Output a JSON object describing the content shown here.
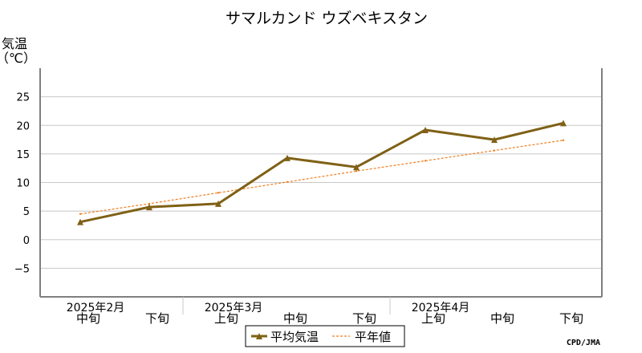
{
  "chart_data": {
    "type": "line",
    "title": "サマルカンド ウズベキスタン",
    "ylabel_line1": "気温",
    "ylabel_line2": "（℃）",
    "ylim": [
      -10,
      30
    ],
    "yticks": [
      "25",
      "20",
      "15",
      "10",
      "5",
      "0",
      "−5"
    ],
    "ytick_values": [
      25,
      20,
      15,
      10,
      5,
      0,
      -5
    ],
    "categories": [
      "中旬",
      "下旬",
      "上旬",
      "中旬",
      "下旬",
      "上旬",
      "中旬",
      "下旬"
    ],
    "months": [
      {
        "label": "2025年2月",
        "start_index": 0
      },
      {
        "label": "2025年3月",
        "start_index": 2
      },
      {
        "label": "2025年4月",
        "start_index": 5
      }
    ],
    "series": [
      {
        "name": "平均気温",
        "values": [
          3.1,
          5.7,
          6.3,
          14.3,
          12.7,
          19.2,
          17.5,
          20.4
        ],
        "color": "#7f6116",
        "marker": "triangle"
      },
      {
        "name": "平年値",
        "values": [
          4.5,
          6.3,
          8.2,
          10.1,
          12.0,
          13.8,
          15.6,
          17.4
        ],
        "color": "#f07f20",
        "dash": true
      }
    ],
    "grid": true,
    "legend": "bottom-center",
    "credit": "CPD/JMA"
  }
}
